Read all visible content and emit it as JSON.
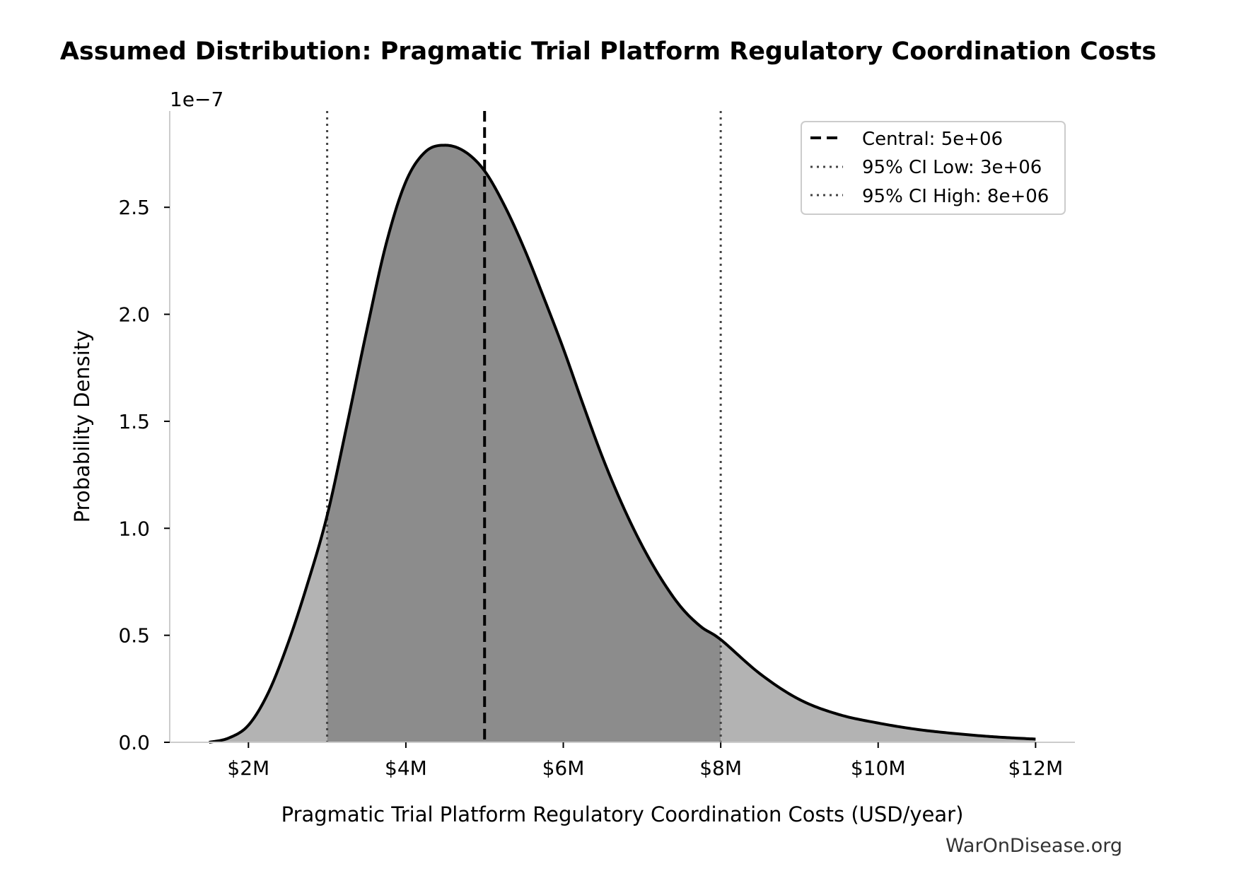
{
  "chart_data": {
    "type": "area",
    "title": "Assumed Distribution: Pragmatic Trial Platform Regulatory Coordination Costs",
    "xlabel": "Pragmatic Trial Platform Regulatory Coordination Costs (USD/year)",
    "ylabel": "Probability Density",
    "y_scale_label": "1e−7",
    "y_multiplier": 1e-07,
    "xlim": [
      1000000,
      12500000
    ],
    "ylim": [
      0,
      2.95
    ],
    "x_ticks": [
      {
        "value": 2000000,
        "label": "$2M"
      },
      {
        "value": 4000000,
        "label": "$4M"
      },
      {
        "value": 6000000,
        "label": "$6M"
      },
      {
        "value": 8000000,
        "label": "$8M"
      },
      {
        "value": 10000000,
        "label": "$10M"
      },
      {
        "value": 12000000,
        "label": "$12M"
      }
    ],
    "y_ticks": [
      {
        "value": 0.0,
        "label": "0.0"
      },
      {
        "value": 0.5,
        "label": "0.5"
      },
      {
        "value": 1.0,
        "label": "1.0"
      },
      {
        "value": 1.5,
        "label": "1.5"
      },
      {
        "value": 2.0,
        "label": "2.0"
      },
      {
        "value": 2.5,
        "label": "2.5"
      }
    ],
    "series": [
      {
        "kind": "density",
        "x": [
          1500000,
          1750000,
          2000000,
          2250000,
          2500000,
          2750000,
          3000000,
          3250000,
          3500000,
          3750000,
          4000000,
          4250000,
          4500000,
          4750000,
          5000000,
          5250000,
          5500000,
          5750000,
          6000000,
          6250000,
          6500000,
          6750000,
          7000000,
          7250000,
          7500000,
          7750000,
          8000000,
          8500000,
          9000000,
          9500000,
          10000000,
          10500000,
          11000000,
          11500000,
          12000000
        ],
        "y": [
          0.0,
          0.02,
          0.08,
          0.23,
          0.46,
          0.74,
          1.06,
          1.48,
          1.92,
          2.33,
          2.62,
          2.76,
          2.79,
          2.76,
          2.67,
          2.51,
          2.31,
          2.08,
          1.84,
          1.58,
          1.33,
          1.11,
          0.92,
          0.76,
          0.63,
          0.54,
          0.48,
          0.32,
          0.2,
          0.13,
          0.09,
          0.06,
          0.04,
          0.025,
          0.015
        ],
        "fill_inside_ci": "#8c8c8c",
        "fill_outside_ci": "#b3b3b3",
        "stroke": "#000000"
      }
    ],
    "reference_lines": [
      {
        "name": "Central: 5e+06",
        "x": 5000000,
        "style": "dashed",
        "color": "#000000"
      },
      {
        "name": "95% CI Low: 3e+06",
        "x": 3000000,
        "style": "dotted",
        "color": "#444444"
      },
      {
        "name": "95% CI High: 8e+06",
        "x": 8000000,
        "style": "dotted",
        "color": "#444444"
      }
    ],
    "legend_position": "top-right",
    "grid": false
  },
  "watermark": "WarOnDisease.org"
}
